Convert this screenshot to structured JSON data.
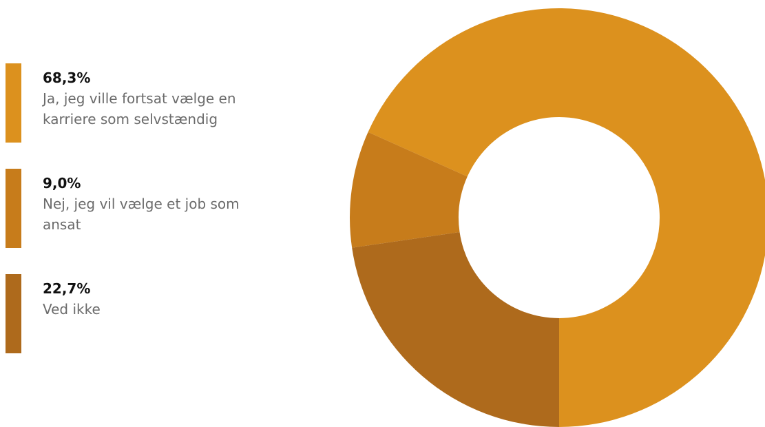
{
  "chart_data": {
    "type": "pie",
    "categories": [
      "Ja, jeg ville fortsat vælge en karriere som selvstændig",
      "Nej, jeg vil vælge et job som ansat",
      "Ved ikke"
    ],
    "values": [
      68.3,
      9.0,
      22.7
    ],
    "value_labels": [
      "68,3%",
      "9,0%",
      "22,7%"
    ],
    "colors": [
      "#dc911e",
      "#c77c1b",
      "#ae6a1c"
    ],
    "donut": true
  }
}
